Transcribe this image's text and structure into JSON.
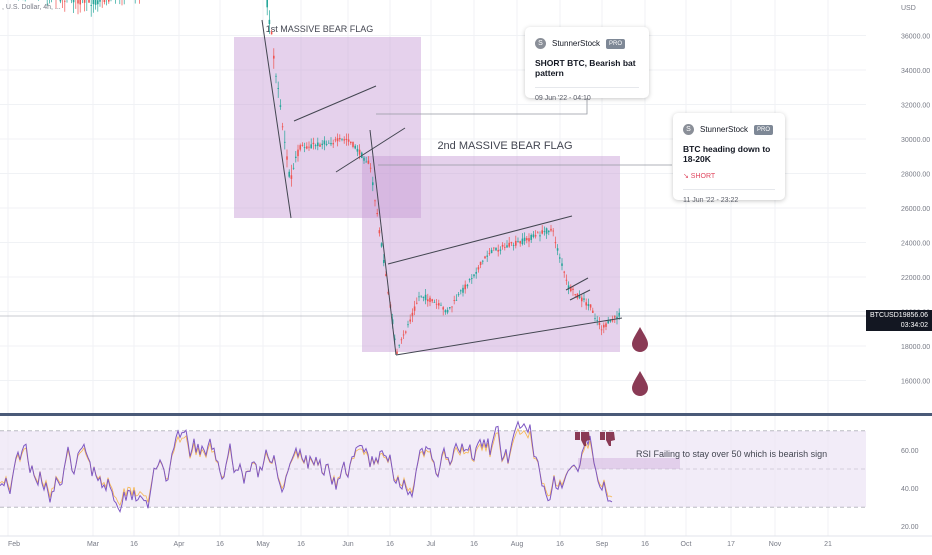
{
  "chart_data": [
    {
      "type": "line",
      "title": "",
      "xlabel": "",
      "ylabel": "",
      "ylim": [
        14000,
        40000
      ],
      "y_ticks": [
        16000,
        18000,
        20000,
        22000,
        24000,
        26000,
        28000,
        30000,
        32000,
        34000,
        36000,
        38000
      ],
      "y_tick_labels": [
        "16000.00",
        "18000.00",
        "20000.00",
        "22000.00",
        "24000.00",
        "26000.00",
        "28000.00",
        "30000.00",
        "32000.00",
        "34000.00",
        "36000.00",
        "USD"
      ],
      "x_tick_labels": [
        "Feb",
        "Mar",
        "16",
        "Apr",
        "16",
        "May",
        "16",
        "Jun",
        "16",
        "Jul",
        "16",
        "Aug",
        "16",
        "Sep",
        "16",
        "Oct",
        "17",
        "Nov",
        "21"
      ],
      "symbol_line": ", U.S. Dollar, 4h, ...",
      "series": [
        {
          "x": [
            "Feb",
            "Mar",
            "Apr",
            "May 5",
            "May 12",
            "May 20",
            "Jun 1",
            "Jun 10",
            "Jun 18",
            "Jun 26",
            "Jul 8",
            "Jul 20",
            "Jul 30",
            "Aug 14",
            "Aug 19",
            "Aug 26",
            "Sep 6",
            "Sep 9"
          ],
          "y": [
            38800,
            38000,
            39500,
            39800,
            27500,
            29500,
            30000,
            28500,
            17600,
            21000,
            20000,
            23500,
            24000,
            24800,
            21400,
            20300,
            19000,
            19856
          ],
          "color": "#26a69a"
        }
      ],
      "current_price": {
        "symbol": "BTCUSD",
        "value": "19856.06",
        "countdown": "03:34:02"
      },
      "annotations": [
        {
          "label": "1st MASSIVE BEAR FLAG",
          "from": "Apr 20",
          "to": "Jun 8",
          "y_range": [
            25700,
            36700
          ]
        },
        {
          "label": "2nd MASSIVE BEAR FLAG",
          "from": "Jun 8",
          "to": "Sep 10",
          "y_range": [
            17800,
            29400
          ]
        }
      ],
      "grid": true
    },
    {
      "type": "line",
      "title": "RSI",
      "ylim": [
        18,
        78
      ],
      "y_ticks": [
        20,
        40,
        60
      ],
      "y_tick_labels": [
        "20.00",
        "40.00",
        "60.00"
      ],
      "levels": [
        30,
        50,
        70
      ],
      "annotation": "RSI Failing to stay over 50 which is bearish sign"
    }
  ],
  "ideas": [
    {
      "author": "StunnerStock",
      "badge": "PRO",
      "avatar": "S",
      "title": "SHORT BTC, Bearish bat pattern",
      "tag": "",
      "timestamp": "09 Jun '22 - 04:10"
    },
    {
      "author": "StunnerStock",
      "badge": "PRO",
      "avatar": "S",
      "title": "BTC heading down to 18-20K",
      "tag": "↘ SHORT",
      "timestamp": "11 Jun '22 - 23:22"
    }
  ],
  "colors": {
    "up": "#26a69a",
    "down": "#ef5350",
    "flag_fill": "#c69ad4",
    "rsi_line": "#7e57c2",
    "rsi_band": "#ede4f5",
    "drop": "#8a3a55",
    "thumb": "#8a3a55"
  }
}
